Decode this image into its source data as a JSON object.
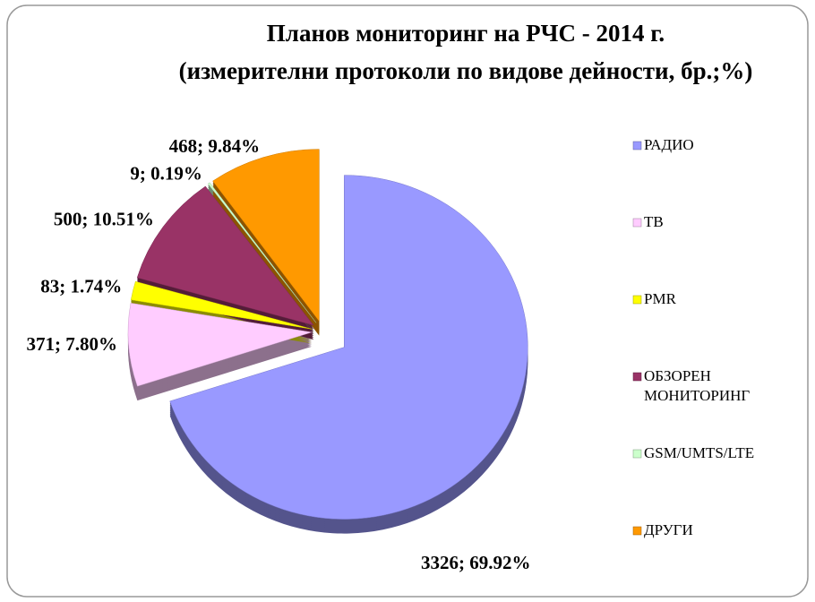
{
  "chart_data": {
    "type": "pie",
    "title": "Планов мониторинг на РЧС - 2014 г.",
    "subtitle": "(измерителни протоколи по видове дейности, бр.;%)",
    "categories": [
      "РАДИО",
      "ТВ",
      "PMR",
      "ОБЗОРЕН МОНИТОРИНГ",
      "GSM/UMTS/LTE",
      "ДРУГИ"
    ],
    "values": [
      3326,
      371,
      83,
      500,
      9,
      468
    ],
    "value_labels": [
      "3326; 69.92%",
      "371; 7.80%",
      "83; 1.74%",
      "500; 10.51%",
      "9; 0.19%",
      "468; 9.84%"
    ],
    "colors": [
      "#9999ff",
      "#ffccff",
      "#ffff00",
      "#993366",
      "#ccffcc",
      "#ff9900"
    ],
    "legend": "right"
  }
}
